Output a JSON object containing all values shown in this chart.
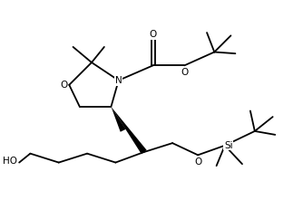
{
  "background": "#ffffff",
  "figsize": [
    3.34,
    2.42
  ],
  "dpi": 100,
  "xlim": [
    0,
    10
  ],
  "ylim": [
    0,
    7.25
  ]
}
